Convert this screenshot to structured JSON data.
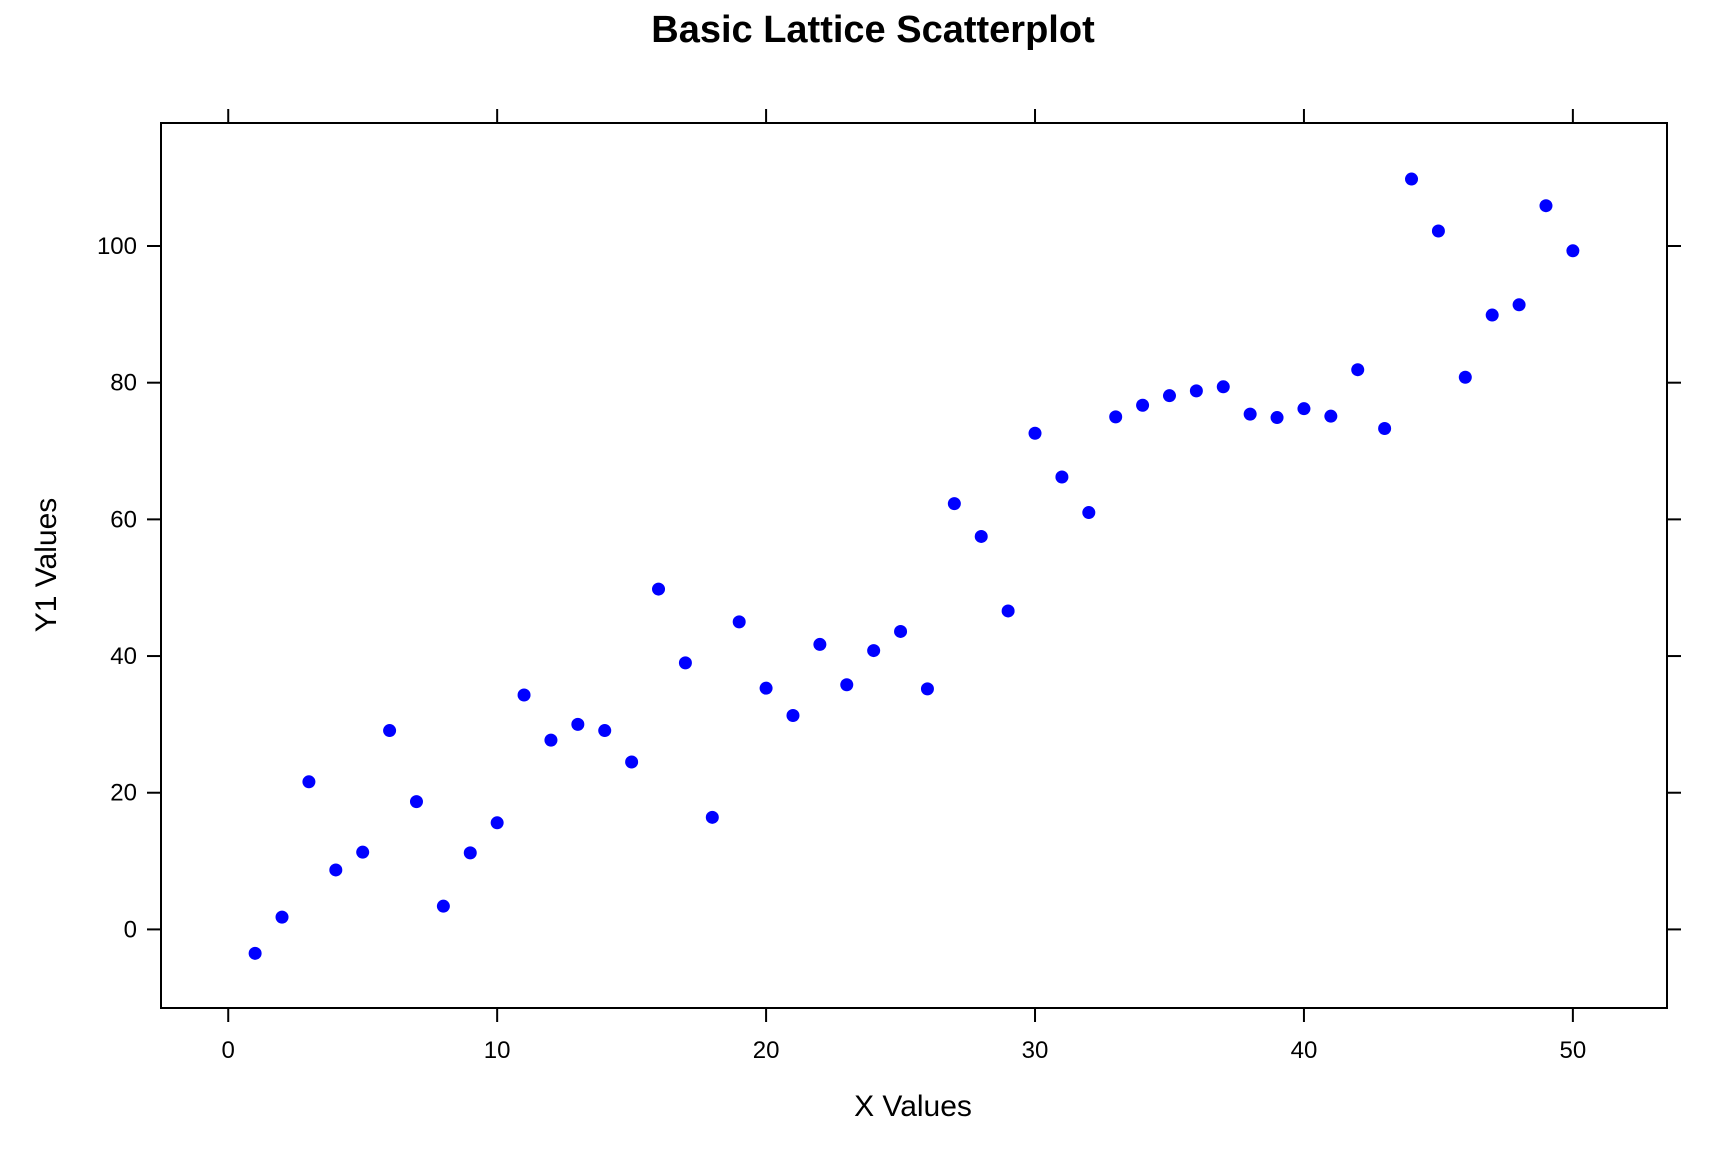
{
  "chart_data": {
    "type": "scatter",
    "title": "Basic Lattice Scatterplot",
    "xlabel": "X Values",
    "ylabel": "Y1 Values",
    "xlim": [
      -2.5,
      53.5
    ],
    "ylim": [
      -11.5,
      118
    ],
    "xticks": [
      0,
      10,
      20,
      30,
      40,
      50
    ],
    "yticks": [
      0,
      20,
      40,
      60,
      80,
      100
    ],
    "grid": false,
    "legend": "none",
    "point_color": "#0000FF",
    "series": [
      {
        "x": [
          1,
          2,
          3,
          4,
          5,
          6,
          7,
          8,
          9,
          10,
          11,
          12,
          13,
          14,
          15,
          16,
          17,
          18,
          19,
          20,
          21,
          22,
          23,
          24,
          25,
          26,
          27,
          28,
          29,
          30,
          31,
          32,
          33,
          34,
          35,
          36,
          37,
          38,
          39,
          40,
          41,
          42,
          43,
          44,
          45,
          46,
          47,
          48,
          49,
          50
        ],
        "y": [
          -3.5,
          1.8,
          21.6,
          8.7,
          11.3,
          29.1,
          18.7,
          3.4,
          11.2,
          15.6,
          34.3,
          27.7,
          30.0,
          29.1,
          24.5,
          49.8,
          39.0,
          16.4,
          45.0,
          35.3,
          31.3,
          41.7,
          35.8,
          40.8,
          43.6,
          35.2,
          62.3,
          57.5,
          46.6,
          72.6,
          66.2,
          61.0,
          75.0,
          76.7,
          78.1,
          78.8,
          79.4,
          75.4,
          74.9,
          76.2,
          75.1,
          81.9,
          73.3,
          109.8,
          102.2,
          80.8,
          89.9,
          91.4,
          105.9,
          99.3
        ]
      }
    ]
  }
}
